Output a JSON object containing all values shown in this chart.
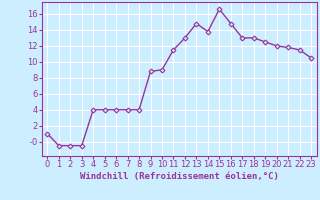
{
  "x": [
    0,
    1,
    2,
    3,
    4,
    5,
    6,
    7,
    8,
    9,
    10,
    11,
    12,
    13,
    14,
    15,
    16,
    17,
    18,
    19,
    20,
    21,
    22,
    23
  ],
  "y": [
    1.0,
    -0.5,
    -0.5,
    -0.5,
    4.0,
    4.0,
    4.0,
    4.0,
    4.0,
    8.8,
    9.0,
    11.5,
    13.0,
    14.8,
    13.8,
    16.6,
    14.8,
    13.0,
    13.0,
    12.5,
    12.0,
    11.8,
    11.5,
    10.5
  ],
  "line_color": "#993399",
  "marker": "D",
  "markersize": 2.5,
  "linewidth": 1.0,
  "background_color": "#cceeff",
  "grid_color": "#ffffff",
  "xlabel": "Windchill (Refroidissement éolien,°C)",
  "xlim": [
    -0.5,
    23.5
  ],
  "ylim": [
    -1.8,
    17.5
  ],
  "yticks": [
    0,
    2,
    4,
    6,
    8,
    10,
    12,
    14,
    16
  ],
  "xticks": [
    0,
    1,
    2,
    3,
    4,
    5,
    6,
    7,
    8,
    9,
    10,
    11,
    12,
    13,
    14,
    15,
    16,
    17,
    18,
    19,
    20,
    21,
    22,
    23
  ],
  "tick_color": "#993399",
  "label_color": "#993399",
  "xlabel_fontsize": 6.5,
  "tick_fontsize": 6.0
}
